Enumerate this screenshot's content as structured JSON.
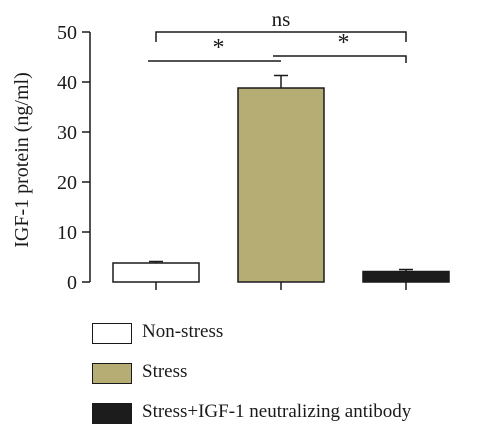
{
  "chart_data": {
    "type": "bar",
    "title": "",
    "ylabel": "IGF-1 protein (ng/ml)",
    "xlabel": "",
    "ylim": [
      0,
      50
    ],
    "yticks": [
      0,
      10,
      20,
      30,
      40,
      50
    ],
    "categories": [
      "Non-stress",
      "Stress",
      "Stress+IGF-1 neutralizing antibody"
    ],
    "values": [
      3.8,
      38.8,
      2.1
    ],
    "errors": [
      0.3,
      2.5,
      0.4
    ],
    "colors": [
      "#ffffff",
      "#b5ad73",
      "#1c1c1c"
    ],
    "significance": [
      {
        "from": 0,
        "to": 1,
        "label": "*"
      },
      {
        "from": 1,
        "to": 2,
        "label": "*"
      },
      {
        "from": 0,
        "to": 2,
        "label": "ns"
      }
    ],
    "legend": {
      "position": "bottom",
      "entries": [
        "Non-stress",
        "Stress",
        "Stress+IGF-1 neutralizing antibody"
      ]
    }
  }
}
